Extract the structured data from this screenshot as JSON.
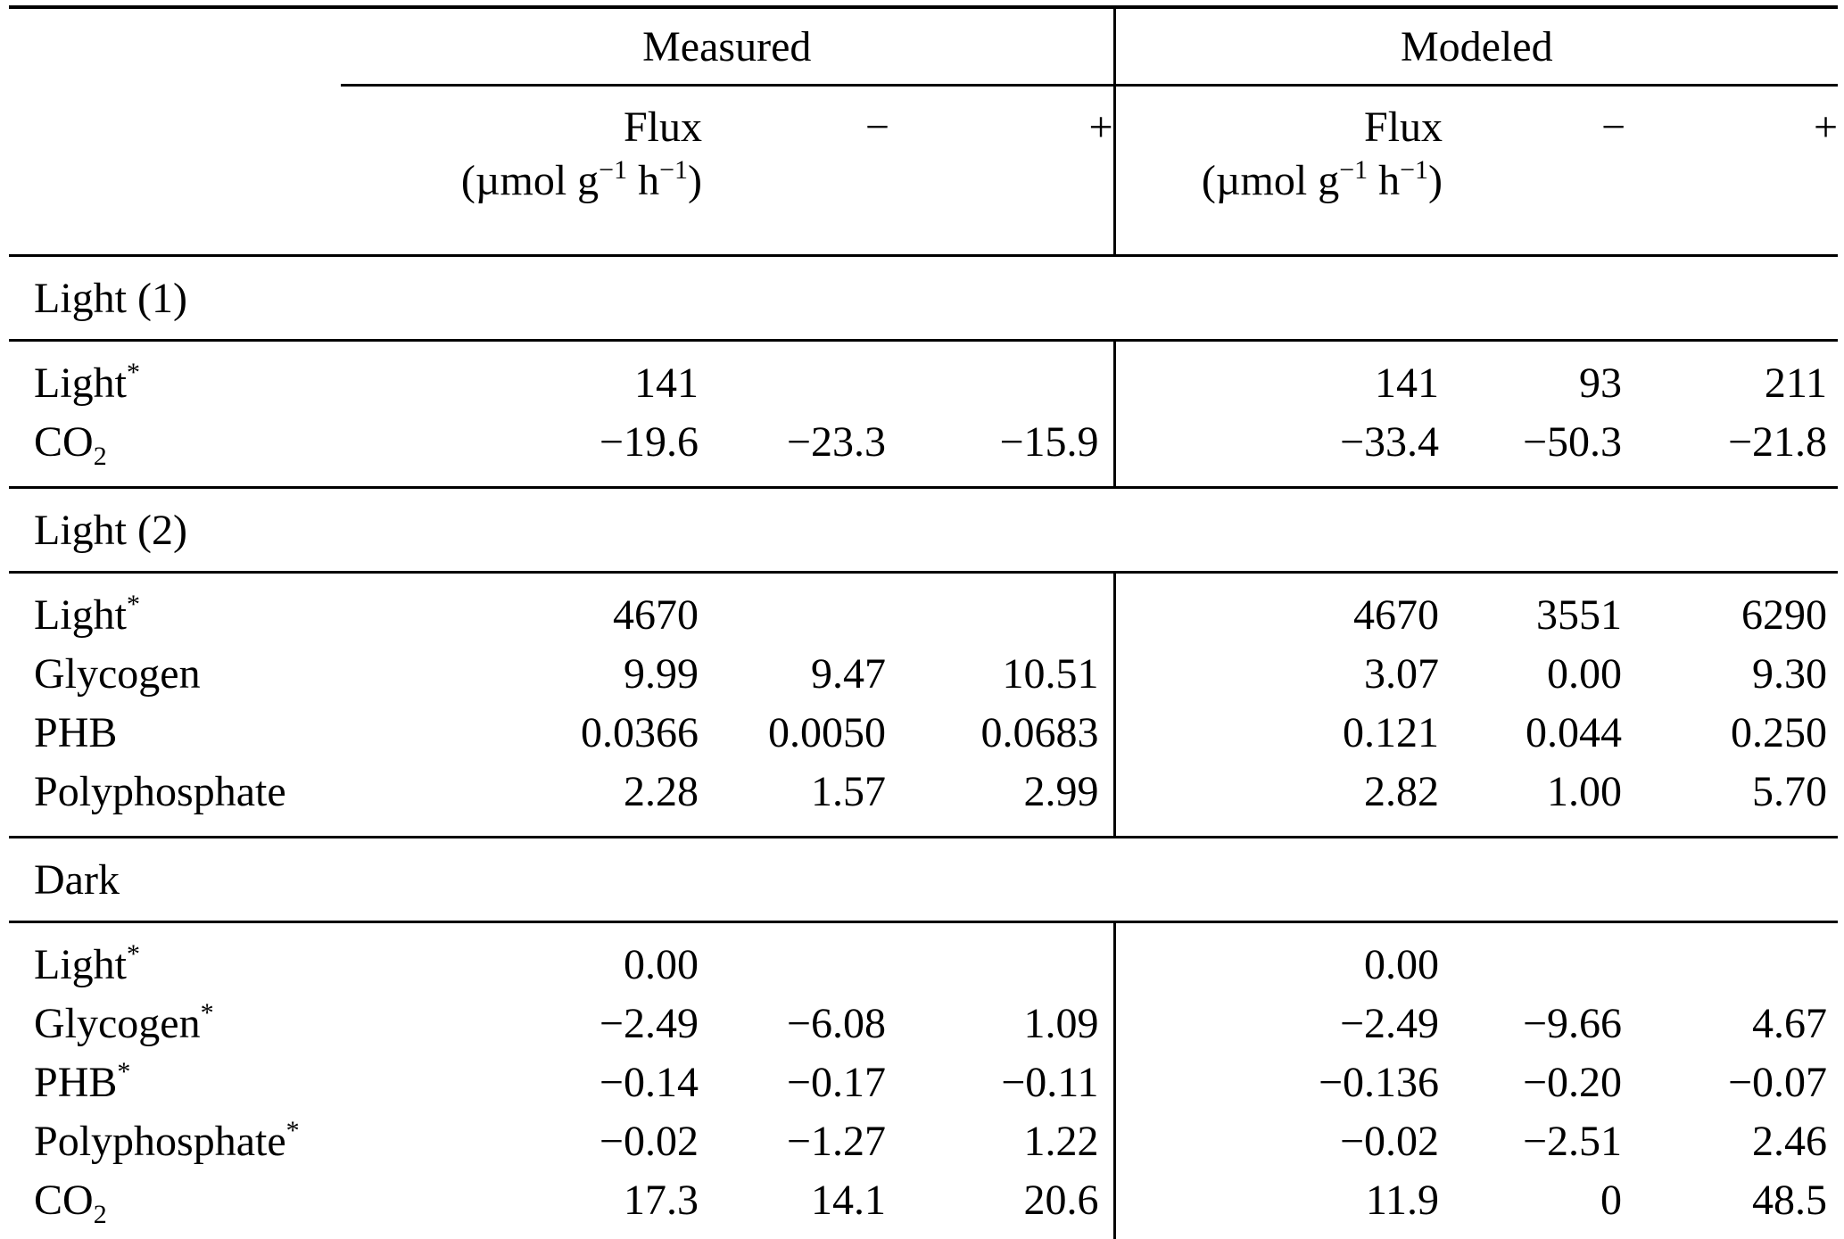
{
  "table": {
    "groups": {
      "measured": "Measured",
      "modeled": "Modeled"
    },
    "columns": {
      "flux": {
        "label": "Flux",
        "unit_open": "(µmol g",
        "unit_exp1": "−1",
        "unit_mid": " h",
        "unit_exp2": "−1",
        "unit_close": ")"
      },
      "minus_label": "−",
      "plus_label": "+"
    },
    "sections": [
      {
        "title": "Light (1)",
        "rows": [
          {
            "label": {
              "text": "Light",
              "sup": "*"
            },
            "measured": {
              "flux": "141",
              "minus": "",
              "plus": ""
            },
            "modeled": {
              "flux": "141",
              "minus": "93",
              "plus": "211"
            }
          },
          {
            "label": {
              "text": "CO",
              "sub": "2"
            },
            "measured": {
              "flux": "−19.6",
              "minus": "−23.3",
              "plus": "−15.9"
            },
            "modeled": {
              "flux": "−33.4",
              "minus": "−50.3",
              "plus": "−21.8"
            }
          }
        ]
      },
      {
        "title": "Light (2)",
        "rows": [
          {
            "label": {
              "text": "Light",
              "sup": "*"
            },
            "measured": {
              "flux": "4670",
              "minus": "",
              "plus": ""
            },
            "modeled": {
              "flux": "4670",
              "minus": "3551",
              "plus": "6290"
            }
          },
          {
            "label": {
              "text": "Glycogen"
            },
            "measured": {
              "flux": "9.99",
              "minus": "9.47",
              "plus": "10.51"
            },
            "modeled": {
              "flux": "3.07",
              "minus": "0.00",
              "plus": "9.30"
            }
          },
          {
            "label": {
              "text": "PHB"
            },
            "measured": {
              "flux": "0.0366",
              "minus": "0.0050",
              "plus": "0.0683"
            },
            "modeled": {
              "flux": "0.121",
              "minus": "0.044",
              "plus": "0.250"
            }
          },
          {
            "label": {
              "text": "Polyphosphate"
            },
            "measured": {
              "flux": "2.28",
              "minus": "1.57",
              "plus": "2.99"
            },
            "modeled": {
              "flux": "2.82",
              "minus": "1.00",
              "plus": "5.70"
            }
          }
        ]
      },
      {
        "title": "Dark",
        "rows": [
          {
            "label": {
              "text": "Light",
              "sup": "*"
            },
            "measured": {
              "flux": "0.00",
              "minus": "",
              "plus": ""
            },
            "modeled": {
              "flux": "0.00",
              "minus": "",
              "plus": ""
            }
          },
          {
            "label": {
              "text": "Glycogen",
              "sup": "*"
            },
            "measured": {
              "flux": "−2.49",
              "minus": "−6.08",
              "plus": "1.09"
            },
            "modeled": {
              "flux": "−2.49",
              "minus": "−9.66",
              "plus": "4.67"
            }
          },
          {
            "label": {
              "text": "PHB",
              "sup": "*"
            },
            "measured": {
              "flux": "−0.14",
              "minus": "−0.17",
              "plus": "−0.11"
            },
            "modeled": {
              "flux": "−0.136",
              "minus": "−0.20",
              "plus": "−0.07"
            }
          },
          {
            "label": {
              "text": "Polyphosphate",
              "sup": "*"
            },
            "measured": {
              "flux": "−0.02",
              "minus": "−1.27",
              "plus": "1.22"
            },
            "modeled": {
              "flux": "−0.02",
              "minus": "−2.51",
              "plus": "2.46"
            }
          },
          {
            "label": {
              "text": "CO",
              "sub": "2"
            },
            "measured": {
              "flux": "17.3",
              "minus": "14.1",
              "plus": "20.6"
            },
            "modeled": {
              "flux": "11.9",
              "minus": "0",
              "plus": "48.5"
            }
          }
        ]
      }
    ]
  }
}
